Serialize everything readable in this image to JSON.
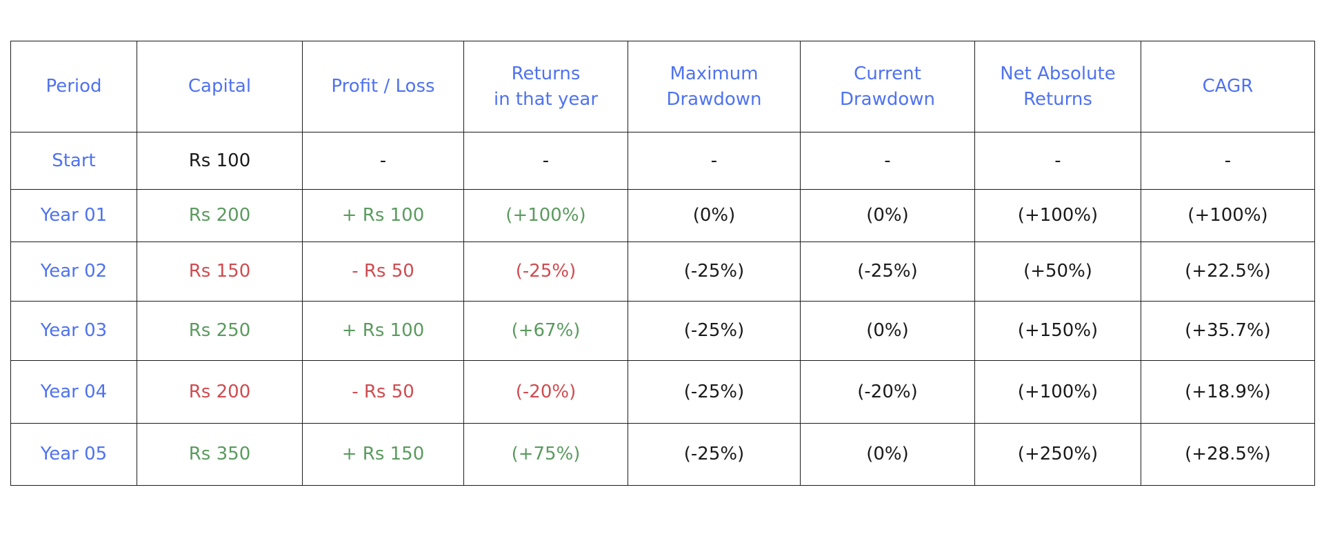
{
  "table": {
    "headers": [
      {
        "lines": [
          "Period"
        ]
      },
      {
        "lines": [
          "Capital"
        ]
      },
      {
        "lines": [
          "Profit / Loss"
        ]
      },
      {
        "lines": [
          "Returns",
          "in that year"
        ]
      },
      {
        "lines": [
          "Maximum",
          "Drawdown"
        ]
      },
      {
        "lines": [
          "Current",
          "Drawdown"
        ]
      },
      {
        "lines": [
          "Net Absolute",
          "Returns"
        ]
      },
      {
        "lines": [
          "CAGR"
        ]
      }
    ],
    "rows": [
      {
        "period": "Start",
        "capital": "Rs 100",
        "profit_loss": "-",
        "returns": "-",
        "max_drawdown": "-",
        "current_drawdown": "-",
        "net_absolute_returns": "-",
        "cagr": "-"
      },
      {
        "period": "Year 01",
        "capital": "Rs 200",
        "profit_loss": "+ Rs 100",
        "returns": "(+100%)",
        "max_drawdown": "(0%)",
        "current_drawdown": "(0%)",
        "net_absolute_returns": "(+100%)",
        "cagr": "(+100%)"
      },
      {
        "period": "Year 02",
        "capital": "Rs 150",
        "profit_loss": "- Rs 50",
        "returns": "(-25%)",
        "max_drawdown": "(-25%)",
        "current_drawdown": "(-25%)",
        "net_absolute_returns": "(+50%)",
        "cagr": "(+22.5%)"
      },
      {
        "period": "Year 03",
        "capital": "Rs 250",
        "profit_loss": "+ Rs 100",
        "returns": "(+67%)",
        "max_drawdown": "(-25%)",
        "current_drawdown": "(0%)",
        "net_absolute_returns": "(+150%)",
        "cagr": "(+35.7%)"
      },
      {
        "period": "Year 04",
        "capital": "Rs 200",
        "profit_loss": "- Rs 50",
        "returns": "(-20%)",
        "max_drawdown": "(-25%)",
        "current_drawdown": "(-20%)",
        "net_absolute_returns": "(+100%)",
        "cagr": "(+18.9%)"
      },
      {
        "period": "Year 05",
        "capital": "Rs 350",
        "profit_loss": "+ Rs 150",
        "returns": "(+75%)",
        "max_drawdown": "(-25%)",
        "current_drawdown": "(0%)",
        "net_absolute_returns": "(+250%)",
        "cagr": "(+28.5%)"
      }
    ]
  },
  "colors": {
    "header_blue": "#4f72f0",
    "gain_green": "#5a9a5e",
    "loss_red": "#cf4b50",
    "text_black": "#1a1a1a",
    "border": "#1a1a1a"
  }
}
